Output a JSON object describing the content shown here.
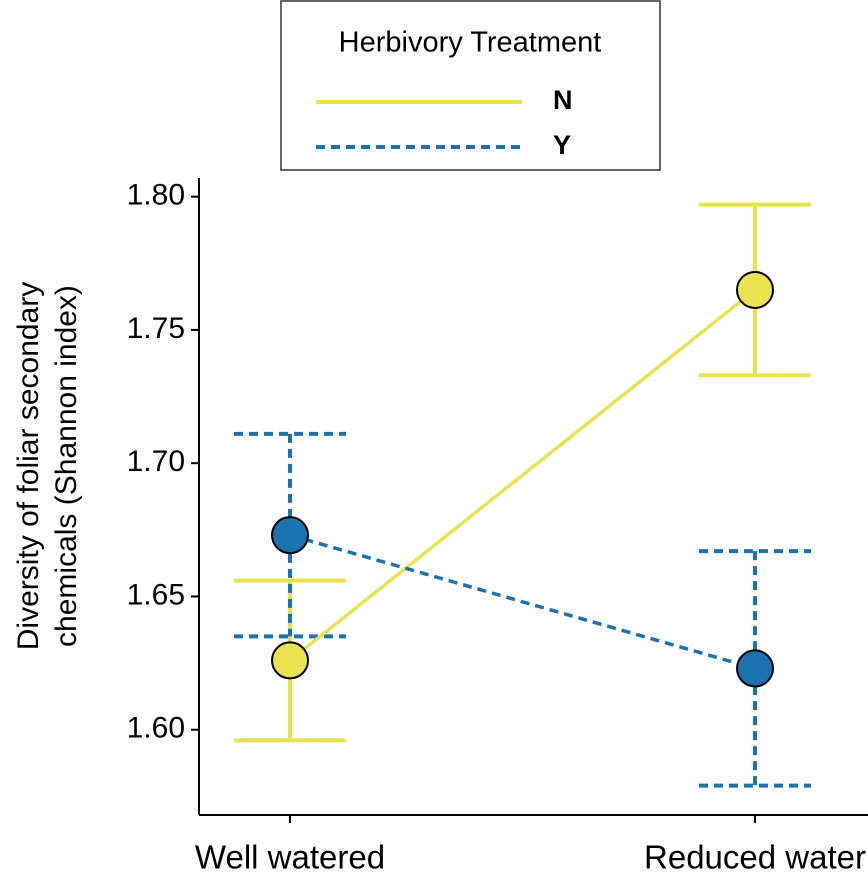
{
  "chart_data": {
    "type": "line",
    "ylabel": [
      "Diversity of foliar secondary",
      "chemicals (Shannon index)"
    ],
    "categories": [
      "Well watered",
      "Reduced water"
    ],
    "legend_title": "Herbivory Treatment",
    "series": [
      {
        "name": "N",
        "color": "#ebe250",
        "dash": false,
        "values": [
          1.626,
          1.765
        ],
        "errors": [
          0.03,
          0.032
        ]
      },
      {
        "name": "Y",
        "color": "#1a73b0",
        "dash": true,
        "values": [
          1.673,
          1.623
        ],
        "errors": [
          0.038,
          0.044
        ]
      }
    ],
    "ylim": [
      1.568,
      1.807
    ],
    "yticks": [
      {
        "value": 1.6,
        "label": "1.60"
      },
      1.65,
      {
        "value": 1.7,
        "label": "1.70"
      },
      1.75,
      {
        "value": 1.8,
        "label": "1.80"
      }
    ]
  }
}
